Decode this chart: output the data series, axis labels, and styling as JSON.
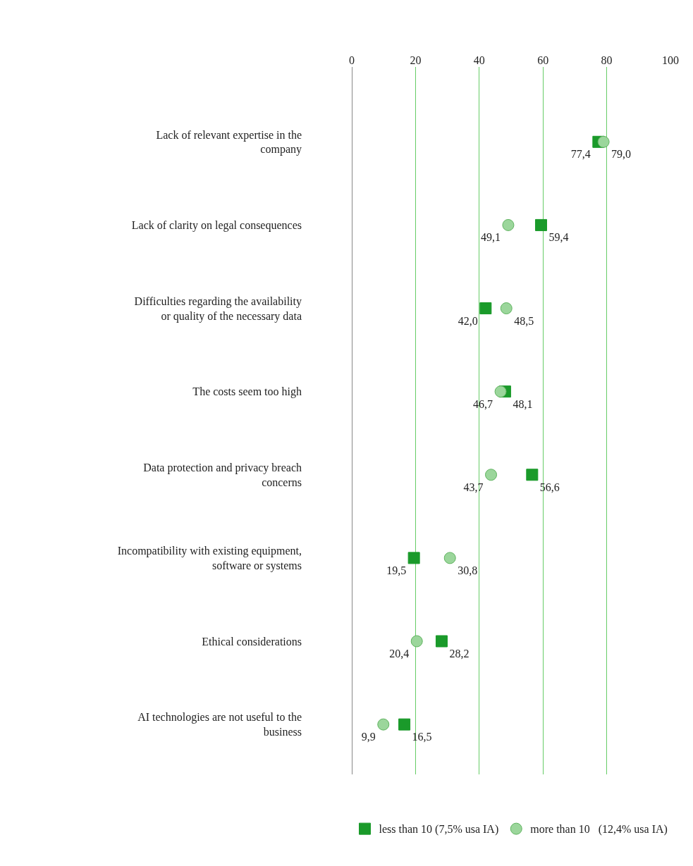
{
  "chart_data": {
    "type": "scatter",
    "orientation": "horizontal",
    "categories": [
      "Lack of relevant expertise in the company",
      "Lack of clarity on legal consequences",
      "Difficulties regarding the availability or quality of the necessary data",
      "The costs seem too high",
      "Data protection and privacy breach concerns",
      "Incompatibility with existing equipment, software or systems",
      "Ethical considerations",
      "AI technologies are not useful to the business"
    ],
    "series": [
      {
        "name": "less than 10 (7,5% usa IA)",
        "color": "#1a9a2a",
        "marker": "square",
        "values": [
          77.4,
          59.4,
          42.0,
          48.1,
          56.6,
          19.5,
          28.2,
          16.5
        ],
        "value_labels": [
          "77,4",
          "59,4",
          "42,0",
          "48,1",
          "56,6",
          "19,5",
          "28,2",
          "16,5"
        ]
      },
      {
        "name": "more than 10   (12,4% usa IA)",
        "color": "#9bd69b",
        "marker": "circle",
        "values": [
          79.0,
          49.1,
          48.5,
          46.7,
          43.7,
          30.8,
          20.4,
          9.9
        ],
        "value_labels": [
          "79,0",
          "49,1",
          "48,5",
          "46,7",
          "43,7",
          "30,8",
          "20,4",
          "9,9"
        ]
      }
    ],
    "xlim": [
      0,
      100
    ],
    "xticks": [
      0,
      20,
      40,
      60,
      80,
      100
    ],
    "grid": "x",
    "legend": "bottom"
  }
}
